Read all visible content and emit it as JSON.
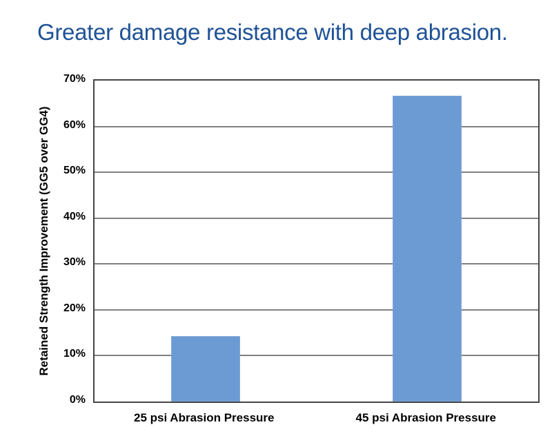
{
  "title": "Greater damage resistance with deep abrasion.",
  "colors": {
    "title_text": "#1F5296",
    "bar_fill": "#6B9BD2",
    "bar_border": "#7FA8D8",
    "gridline": "#808080",
    "plot_border": "#444444",
    "axis_text": "#000000",
    "background": "#FFFFFF"
  },
  "chart_data": {
    "type": "bar",
    "title": "Greater damage resistance with deep abrasion.",
    "categories": [
      "25 psi Abrasion Pressure",
      "45 psi Abrasion Pressure"
    ],
    "values": [
      14.3,
      66.7
    ],
    "xlabel": "",
    "ylabel": "Retained Strength Improvement (GG5 over GG4)",
    "ylim": [
      0,
      70
    ],
    "yticks": [
      0,
      10,
      20,
      30,
      40,
      50,
      60,
      70
    ],
    "ytick_labels": [
      "0%",
      "10%",
      "20%",
      "30%",
      "40%",
      "50%",
      "60%",
      "70%"
    ],
    "grid": "horizontal",
    "legend": "none",
    "bar_width_fraction": 0.312
  }
}
